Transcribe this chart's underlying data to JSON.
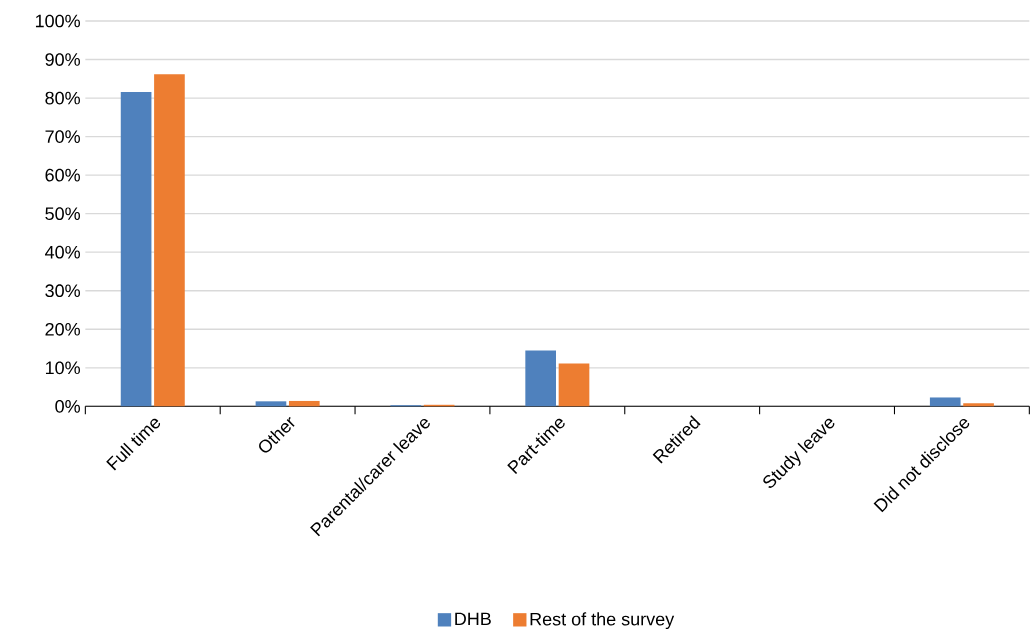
{
  "chart_data": {
    "type": "bar",
    "categories": [
      "Full time",
      "Other",
      "Parental/carer leave",
      "Part-time",
      "Retired",
      "Study leave",
      "Did not disclose"
    ],
    "series": [
      {
        "name": "DHB",
        "color": "#4f81bd",
        "values": [
          81.6,
          1.3,
          0.3,
          14.5,
          0,
          0,
          2.3
        ]
      },
      {
        "name": "Rest of the survey",
        "color": "#ed7d31",
        "values": [
          86.2,
          1.4,
          0.4,
          11.1,
          0,
          0,
          0.8
        ]
      }
    ],
    "ylim": [
      0,
      100
    ],
    "yticks": [
      {
        "value": 0,
        "label": "0%"
      },
      {
        "value": 10,
        "label": "10%"
      },
      {
        "value": 20,
        "label": "20%"
      },
      {
        "value": 30,
        "label": "30%"
      },
      {
        "value": 40,
        "label": "40%"
      },
      {
        "value": 50,
        "label": "50%"
      },
      {
        "value": 60,
        "label": "60%"
      },
      {
        "value": 70,
        "label": "70%"
      },
      {
        "value": 80,
        "label": "80%"
      },
      {
        "value": 90,
        "label": "90%"
      },
      {
        "value": 100,
        "label": "100%"
      }
    ],
    "grid": "y",
    "legend": "bottom"
  }
}
